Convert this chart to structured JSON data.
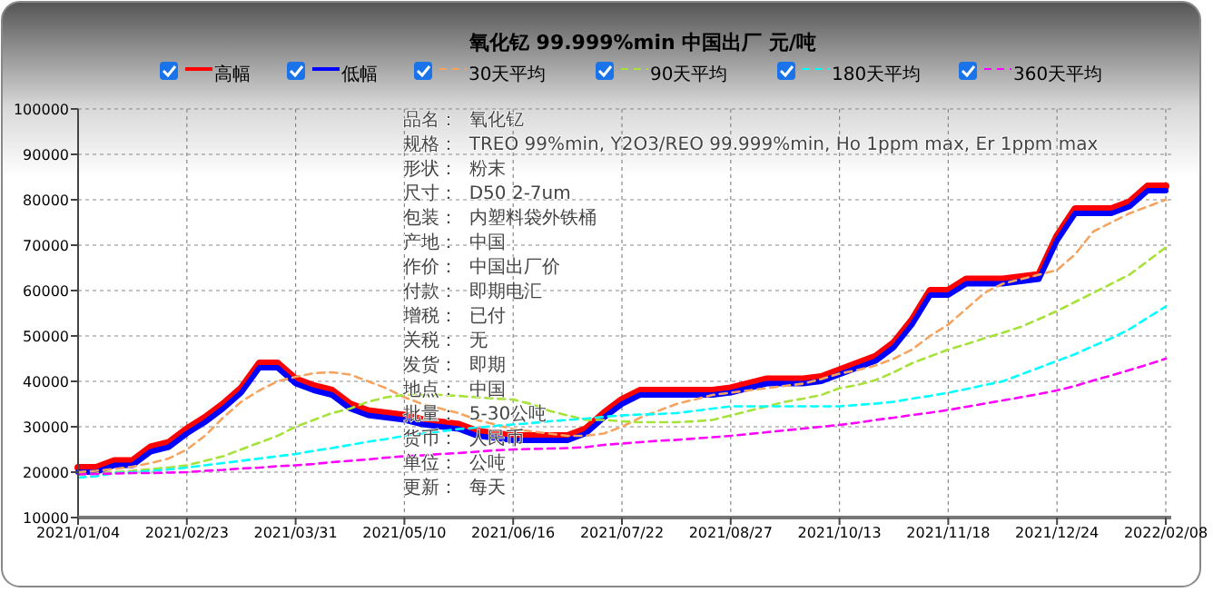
{
  "chart_data": {
    "type": "line",
    "title": "氧化钇 99.999%min 中国出厂 元/吨",
    "categories": [
      "2021/01/04",
      null,
      null,
      null,
      null,
      null,
      "2021/02/23",
      null,
      null,
      null,
      null,
      null,
      "2021/03/31",
      null,
      null,
      null,
      null,
      null,
      "2021/05/10",
      null,
      null,
      null,
      null,
      null,
      "2021/06/16",
      null,
      null,
      null,
      null,
      null,
      "2021/07/22",
      null,
      null,
      null,
      null,
      null,
      "2021/08/27",
      null,
      null,
      null,
      null,
      null,
      "2021/10/13",
      null,
      null,
      null,
      null,
      null,
      "2021/11/18",
      null,
      null,
      null,
      null,
      null,
      "2021/12/24",
      null,
      null,
      null,
      null,
      null,
      "2022/02/08"
    ],
    "ylim": [
      10000,
      100000
    ],
    "yticks": [
      10000,
      20000,
      30000,
      40000,
      50000,
      60000,
      70000,
      80000,
      90000,
      100000
    ],
    "grid": true,
    "legend": "top",
    "marker": "none",
    "series": [
      {
        "name": "高幅",
        "color": "#ff0000",
        "line_style": "solid",
        "values": [
          21000,
          21000,
          22500,
          22500,
          25500,
          26500,
          29500,
          32000,
          35000,
          38500,
          44000,
          44000,
          40500,
          39000,
          38000,
          35000,
          33500,
          33000,
          32500,
          31500,
          31000,
          30500,
          29000,
          28500,
          28000,
          28000,
          28000,
          28000,
          29500,
          33000,
          36000,
          38000,
          38000,
          38000,
          38000,
          38000,
          38500,
          39500,
          40500,
          40500,
          40500,
          41000,
          42500,
          44000,
          45500,
          48500,
          53500,
          60000,
          60000,
          62500,
          62500,
          62500,
          63000,
          63500,
          72000,
          78000,
          78000,
          78000,
          79500,
          83000,
          83000
        ]
      },
      {
        "name": "低幅",
        "color": "#0000ff",
        "line_style": "solid",
        "values": [
          20000,
          20000,
          21500,
          21500,
          24500,
          25500,
          28500,
          31000,
          34000,
          37500,
          43000,
          43000,
          39500,
          38000,
          37000,
          34000,
          32500,
          32000,
          31500,
          30500,
          30000,
          29500,
          28000,
          27500,
          27000,
          27000,
          27000,
          27000,
          28500,
          32000,
          35000,
          37000,
          37000,
          37000,
          37000,
          37000,
          37500,
          38500,
          39500,
          39500,
          39500,
          40000,
          41500,
          43000,
          44500,
          47500,
          52500,
          59000,
          59000,
          61500,
          61500,
          61500,
          62000,
          62500,
          71000,
          77000,
          77000,
          77000,
          78500,
          82000,
          82000
        ]
      },
      {
        "name": "30天平均",
        "color": "#f4a460",
        "line_style": "dashed",
        "values": [
          20000,
          20300,
          20700,
          21200,
          22000,
          23000,
          25000,
          28000,
          32000,
          35500,
          38000,
          40000,
          41000,
          41800,
          42000,
          41500,
          40000,
          38500,
          36500,
          35000,
          34000,
          33000,
          31500,
          30500,
          29500,
          29000,
          28500,
          28000,
          28000,
          28500,
          30000,
          32000,
          33500,
          35000,
          36000,
          37000,
          37500,
          38000,
          38500,
          39000,
          39500,
          40500,
          41700,
          42500,
          43500,
          45000,
          47000,
          50000,
          52500,
          56000,
          59500,
          61500,
          62500,
          63500,
          64500,
          68000,
          73000,
          75000,
          77000,
          78500,
          80000
        ]
      },
      {
        "name": "90天平均",
        "color": "#a6e23a",
        "line_style": "dashed",
        "values": [
          19500,
          19700,
          20000,
          20300,
          20700,
          21000,
          21500,
          22500,
          23500,
          25000,
          26500,
          28000,
          30000,
          31500,
          33000,
          34000,
          35500,
          36500,
          37000,
          37000,
          37000,
          36800,
          36500,
          36200,
          36000,
          35000,
          33500,
          32500,
          31500,
          31500,
          31200,
          31000,
          31000,
          31000,
          31200,
          31500,
          32500,
          33500,
          34500,
          35500,
          36200,
          37000,
          38500,
          39200,
          40300,
          42000,
          44000,
          45500,
          47000,
          48200,
          49500,
          50700,
          52000,
          53700,
          55500,
          57500,
          59500,
          61500,
          63500,
          66500,
          69500
        ]
      },
      {
        "name": "180天平均",
        "color": "#00ffff",
        "line_style": "dashed",
        "values": [
          18800,
          19100,
          19800,
          20000,
          20300,
          20600,
          21000,
          21500,
          22000,
          22500,
          23000,
          23500,
          24000,
          24700,
          25300,
          26000,
          26700,
          27300,
          28000,
          28500,
          29000,
          29500,
          29800,
          30200,
          30500,
          30800,
          31200,
          31500,
          31800,
          32200,
          32500,
          32700,
          32800,
          33000,
          33500,
          34000,
          34500,
          34500,
          34500,
          34500,
          34500,
          34500,
          34500,
          34800,
          35100,
          35500,
          36200,
          36800,
          37500,
          38300,
          39200,
          40000,
          41500,
          43000,
          44500,
          46000,
          47800,
          49500,
          51500,
          54000,
          56500
        ]
      },
      {
        "name": "360天平均",
        "color": "#ff00ff",
        "line_style": "dashed",
        "values": [
          19500,
          19600,
          19700,
          19800,
          19800,
          19900,
          20000,
          20300,
          20500,
          20800,
          21000,
          21300,
          21500,
          21800,
          22200,
          22500,
          22800,
          23200,
          23500,
          23700,
          24000,
          24200,
          24500,
          24800,
          25000,
          25100,
          25200,
          25300,
          25500,
          26000,
          26300,
          26600,
          26900,
          27100,
          27400,
          27700,
          28000,
          28400,
          28800,
          29200,
          29600,
          30000,
          30400,
          30900,
          31500,
          32000,
          32600,
          33100,
          33700,
          34400,
          35100,
          35800,
          36500,
          37200,
          38000,
          39000,
          40200,
          41300,
          42500,
          43700,
          45000
        ]
      }
    ],
    "annotations": [
      "品名：  氧化钇",
      "规格：  TREO 99%min, Y2O3/REO 99.999%min, Ho 1ppm max, Er 1ppm max",
      "形状：  粉末",
      "尺寸：  D50 2-7um",
      "包装：  内塑料袋外铁桶",
      "产地：  中国",
      "作价：  中国出厂价",
      "付款：  即期电汇",
      "增税：  已付",
      "关税：  无",
      "发货：  即期",
      "地点：  中国",
      "批量：  5-30公吨",
      "货币：  人民币",
      "单位：  公吨",
      "更新：  每天"
    ]
  }
}
